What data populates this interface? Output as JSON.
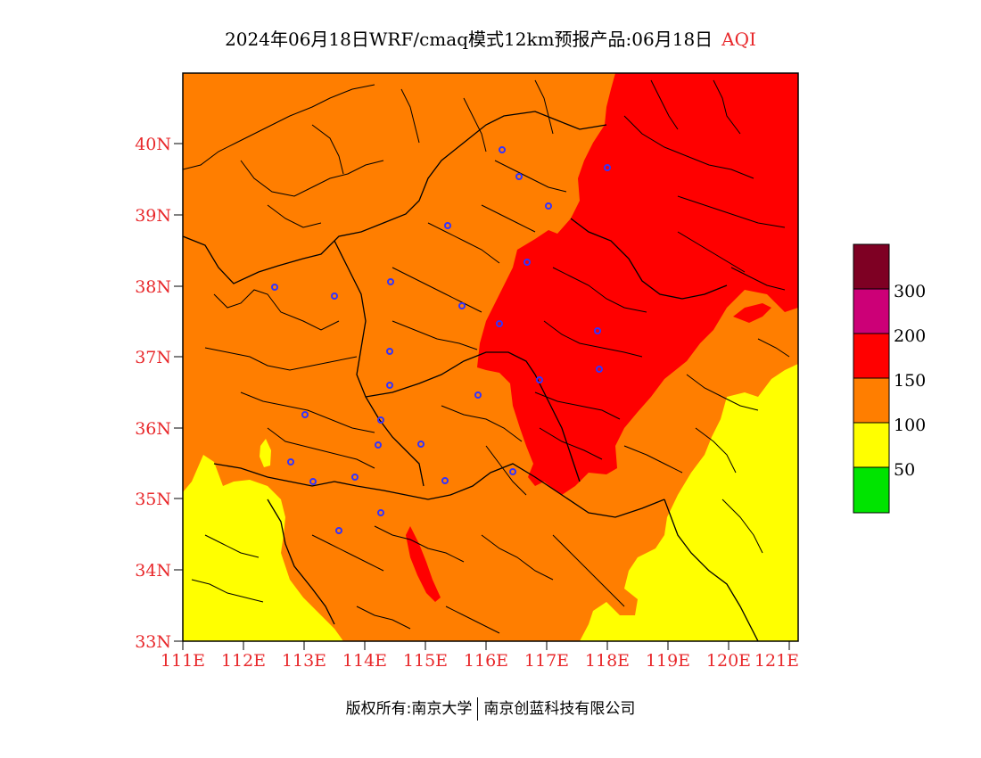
{
  "title": {
    "main": "2024年06月18日WRF/cmaq模式12km预报产品:06月18日",
    "product": "AQI"
  },
  "map": {
    "lat_labels": [
      "40N",
      "39N",
      "38N",
      "37N",
      "36N",
      "35N",
      "34N",
      "33N"
    ],
    "lon_labels": [
      "111E",
      "112E",
      "113E",
      "114E",
      "115E",
      "116E",
      "117E",
      "118E",
      "119E",
      "120E",
      "121E"
    ],
    "colors": {
      "good": "#00e400",
      "moderate": "#ffff00",
      "sensitive": "#ff7e00",
      "unhealthy": "#ff0000",
      "very_unhealthy": "#cc0077",
      "hazardous": "#7e0023",
      "boundary": "#000000",
      "city_marker": "#3333ff",
      "axis_label": "#e8282b"
    }
  },
  "legend": {
    "labels": [
      "300",
      "200",
      "150",
      "100",
      "50"
    ],
    "colors": [
      "#7e0023",
      "#cc0077",
      "#ff0000",
      "#ff7e00",
      "#ffff00",
      "#00e400"
    ]
  },
  "copyright": {
    "left": "版权所有:南京大学",
    "right": "南京创蓝科技有限公司"
  }
}
